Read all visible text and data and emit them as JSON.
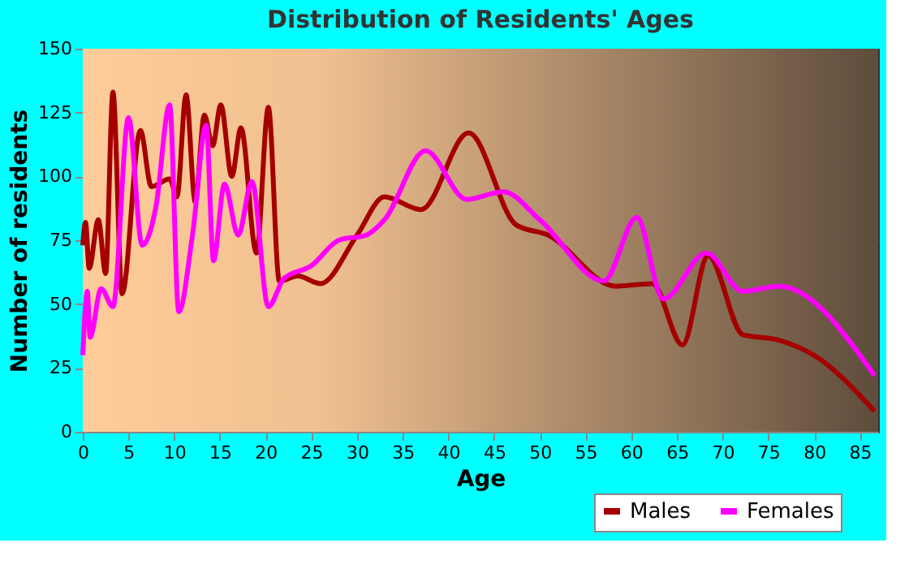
{
  "chart_data": {
    "type": "line",
    "title": "Distribution of Residents' Ages",
    "xlabel": "Age",
    "ylabel": "Number of residents",
    "xlim": [
      0,
      87
    ],
    "xticks": [
      0,
      5,
      10,
      15,
      20,
      25,
      30,
      35,
      40,
      45,
      50,
      55,
      60,
      65,
      70,
      75,
      80,
      85
    ],
    "ylim": [
      0,
      150
    ],
    "yticks": [
      0,
      25,
      50,
      75,
      100,
      125,
      150
    ],
    "grid": true,
    "legend": "bottom right",
    "series": [
      {
        "name": "Males",
        "color": "#a50000",
        "x": [
          0,
          0.3,
          0.7,
          1.7,
          2.5,
          3.3,
          4.3,
          6.3,
          7.5,
          9.5,
          10.3,
          11.3,
          12.3,
          13.3,
          14.2,
          15.1,
          16.3,
          17.3,
          19,
          20.3,
          21.5,
          23.5,
          26,
          30,
          33,
          37,
          42.2,
          47.4,
          50.9,
          58.3,
          62.3,
          65.6,
          68.4,
          72.2,
          76,
          80.4,
          86.6
        ],
        "values": [
          73,
          82,
          64,
          83,
          62,
          133,
          54,
          118,
          96,
          99,
          92,
          132,
          90,
          124,
          112,
          128,
          100,
          119,
          70,
          127,
          59,
          61,
          58,
          77,
          92,
          87,
          117,
          81,
          77,
          57,
          58,
          34,
          69,
          38,
          36,
          29,
          8
        ]
      },
      {
        "name": "Females",
        "color": "#ff00ff",
        "x": [
          0,
          0.5,
          0.8,
          2,
          3.3,
          5,
          6.5,
          8,
          9.5,
          10.5,
          12,
          13.5,
          14.3,
          15.5,
          17,
          18.5,
          20.3,
          22,
          25,
          28,
          31,
          33,
          37.5,
          42,
          46,
          50,
          57,
          60.6,
          63.5,
          68.2,
          72.2,
          76.2,
          86.6
        ],
        "values": [
          30,
          55,
          37,
          56,
          49,
          123,
          73,
          88,
          128,
          47,
          77,
          120,
          67,
          97,
          77,
          98,
          49,
          60,
          65,
          75,
          77,
          83,
          110,
          91,
          94,
          83,
          59,
          84,
          52,
          70,
          55,
          57,
          22
        ]
      }
    ]
  }
}
